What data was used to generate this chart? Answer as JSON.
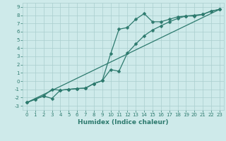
{
  "background_color": "#ceeaea",
  "grid_color": "#aacece",
  "line_color": "#2d7a6e",
  "xlabel": "Humidex (Indice chaleur)",
  "xlim": [
    -0.5,
    23.5
  ],
  "ylim": [
    -3.5,
    9.5
  ],
  "xticks": [
    0,
    1,
    2,
    3,
    4,
    5,
    6,
    7,
    8,
    9,
    10,
    11,
    12,
    13,
    14,
    15,
    16,
    17,
    18,
    19,
    20,
    21,
    22,
    23
  ],
  "yticks": [
    -3,
    -2,
    -1,
    0,
    1,
    2,
    3,
    4,
    5,
    6,
    7,
    8,
    9
  ],
  "line1_x": [
    0,
    1,
    2,
    3,
    4,
    5,
    6,
    7,
    8,
    9,
    10,
    11,
    12,
    13,
    14,
    15,
    16,
    17,
    18,
    19,
    20,
    21,
    22,
    23
  ],
  "line1_y": [
    -2.6,
    -2.2,
    -1.8,
    -2.1,
    -1.1,
    -1.0,
    -0.9,
    -0.85,
    -0.3,
    0.05,
    3.3,
    6.3,
    6.5,
    7.5,
    8.2,
    7.2,
    7.2,
    7.5,
    7.8,
    7.9,
    7.9,
    8.1,
    8.5,
    8.7
  ],
  "line2_x": [
    0,
    1,
    2,
    3,
    4,
    5,
    6,
    7,
    8,
    9,
    10,
    11,
    12,
    13,
    14,
    15,
    16,
    17,
    18,
    19,
    20,
    21,
    22,
    23
  ],
  "line2_y": [
    -2.6,
    -2.2,
    -1.8,
    -1.0,
    -1.1,
    -1.0,
    -0.9,
    -0.85,
    -0.3,
    0.05,
    1.4,
    1.2,
    3.4,
    4.5,
    5.5,
    6.2,
    6.7,
    7.2,
    7.6,
    7.9,
    8.0,
    8.1,
    8.5,
    8.7
  ],
  "line3_x": [
    0,
    23
  ],
  "line3_y": [
    -2.6,
    8.7
  ],
  "markersize": 2.5,
  "linewidth": 0.9,
  "font_size_ticks": 5.0,
  "font_size_xlabel": 6.5
}
